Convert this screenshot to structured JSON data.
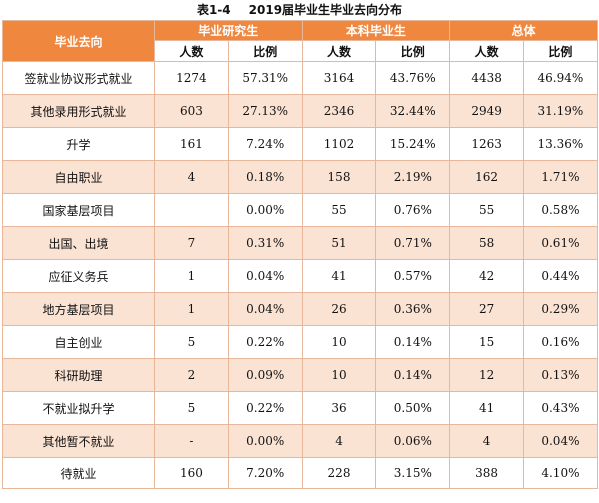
{
  "caption": {
    "number": "表1-4",
    "title": "2019届毕业生毕业去向分布"
  },
  "header": {
    "corner": "毕业去向",
    "groups": [
      "毕业研究生",
      "本科毕业生",
      "总体"
    ],
    "sub": [
      "人数",
      "比例",
      "人数",
      "比例",
      "人数",
      "比例"
    ]
  },
  "rows": [
    {
      "label": "签就业协议形式就业",
      "cells": [
        "1274",
        "57.31%",
        "3164",
        "43.76%",
        "4438",
        "46.94%"
      ]
    },
    {
      "label": "其他录用形式就业",
      "cells": [
        "603",
        "27.13%",
        "2346",
        "32.44%",
        "2949",
        "31.19%"
      ]
    },
    {
      "label": "升学",
      "cells": [
        "161",
        "7.24%",
        "1102",
        "15.24%",
        "1263",
        "13.36%"
      ]
    },
    {
      "label": "自由职业",
      "cells": [
        "4",
        "0.18%",
        "158",
        "2.19%",
        "162",
        "1.71%"
      ]
    },
    {
      "label": "国家基层项目",
      "cells": [
        "",
        "0.00%",
        "55",
        "0.76%",
        "55",
        "0.58%"
      ]
    },
    {
      "label": "出国、出境",
      "cells": [
        "7",
        "0.31%",
        "51",
        "0.71%",
        "58",
        "0.61%"
      ]
    },
    {
      "label": "应征义务兵",
      "cells": [
        "1",
        "0.04%",
        "41",
        "0.57%",
        "42",
        "0.44%"
      ]
    },
    {
      "label": "地方基层项目",
      "cells": [
        "1",
        "0.04%",
        "26",
        "0.36%",
        "27",
        "0.29%"
      ]
    },
    {
      "label": "自主创业",
      "cells": [
        "5",
        "0.22%",
        "10",
        "0.14%",
        "15",
        "0.16%"
      ]
    },
    {
      "label": "科研助理",
      "cells": [
        "2",
        "0.09%",
        "10",
        "0.14%",
        "12",
        "0.13%"
      ]
    },
    {
      "label": "不就业拟升学",
      "cells": [
        "5",
        "0.22%",
        "36",
        "0.50%",
        "41",
        "0.43%"
      ]
    },
    {
      "label": "其他暂不就业",
      "cells": [
        "-",
        "0.00%",
        "4",
        "0.06%",
        "4",
        "0.04%"
      ]
    },
    {
      "label": "待就业",
      "cells": [
        "160",
        "7.20%",
        "228",
        "3.15%",
        "388",
        "4.10%"
      ]
    }
  ],
  "colors": {
    "header_bg": "#f0873f",
    "alt_row_bg": "#fbe3d4",
    "border": "#e7b79b"
  }
}
